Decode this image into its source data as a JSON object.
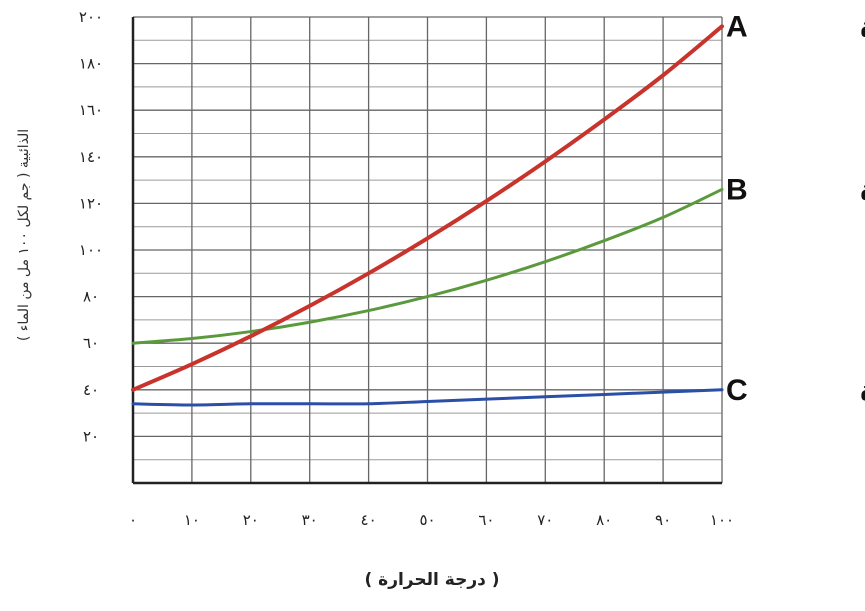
{
  "chart_data": {
    "type": "line",
    "xlabel": "( درجة الحرارة )",
    "ylabel": "الذائبية ( جم لكل ١٠٠ مل من الماء )",
    "xlim": [
      0,
      100
    ],
    "ylim": [
      0,
      200
    ],
    "x_ticks": [
      0,
      10,
      20,
      30,
      40,
      50,
      60,
      70,
      80,
      90,
      100
    ],
    "x_tick_labels": [
      "٠",
      "١٠",
      "٢٠",
      "٣٠",
      "٤٠",
      "٥٠",
      "٦٠",
      "٧٠",
      "٨٠",
      "٩٠",
      "١٠٠"
    ],
    "y_ticks": [
      20,
      40,
      60,
      80,
      100,
      120,
      140,
      160,
      180,
      200
    ],
    "y_tick_labels": [
      "٢٠",
      "٤٠",
      "٦٠",
      "٨٠",
      "١٠٠",
      "١٢٠",
      "١٤٠",
      "١٦٠",
      "١٨٠",
      "٢٠٠"
    ],
    "grid": true,
    "x": [
      0,
      10,
      20,
      30,
      40,
      50,
      60,
      70,
      80,
      90,
      100
    ],
    "series": [
      {
        "name": "المادة A",
        "label_word": "المادة",
        "label_letter": "A",
        "color": "#c8332b",
        "values": [
          40,
          51,
          63,
          76,
          90,
          105,
          121,
          138,
          156,
          175,
          196
        ]
      },
      {
        "name": "المادة B",
        "label_word": "المادة",
        "label_letter": "B",
        "color": "#5a9a3c",
        "values": [
          60,
          62,
          65,
          69,
          74,
          80,
          87,
          95,
          104,
          114,
          126
        ]
      },
      {
        "name": "المادة C",
        "label_word": "المادة",
        "label_letter": "C",
        "color": "#2b4fa6",
        "values": [
          34,
          33.5,
          34,
          34,
          34,
          35,
          36,
          37,
          38,
          39,
          40
        ]
      }
    ]
  }
}
